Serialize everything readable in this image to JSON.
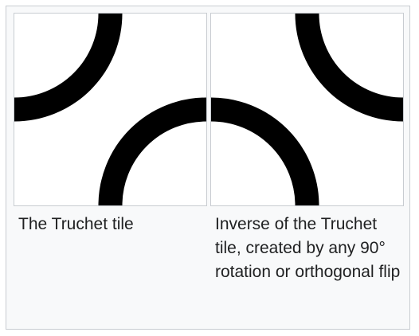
{
  "figures": [
    {
      "tile": "truchet-tile",
      "caption": "The Truchet tile"
    },
    {
      "tile": "inverse-truchet-tile",
      "caption": "Inverse of the Truchet tile, created by any 90° rotation or orthogonal flip"
    }
  ],
  "colors": {
    "arc": "#000000",
    "tile_background": "#ffffff",
    "gallery_background": "#f8f9fa",
    "border": "#c8ccd1",
    "text": "#202122"
  }
}
